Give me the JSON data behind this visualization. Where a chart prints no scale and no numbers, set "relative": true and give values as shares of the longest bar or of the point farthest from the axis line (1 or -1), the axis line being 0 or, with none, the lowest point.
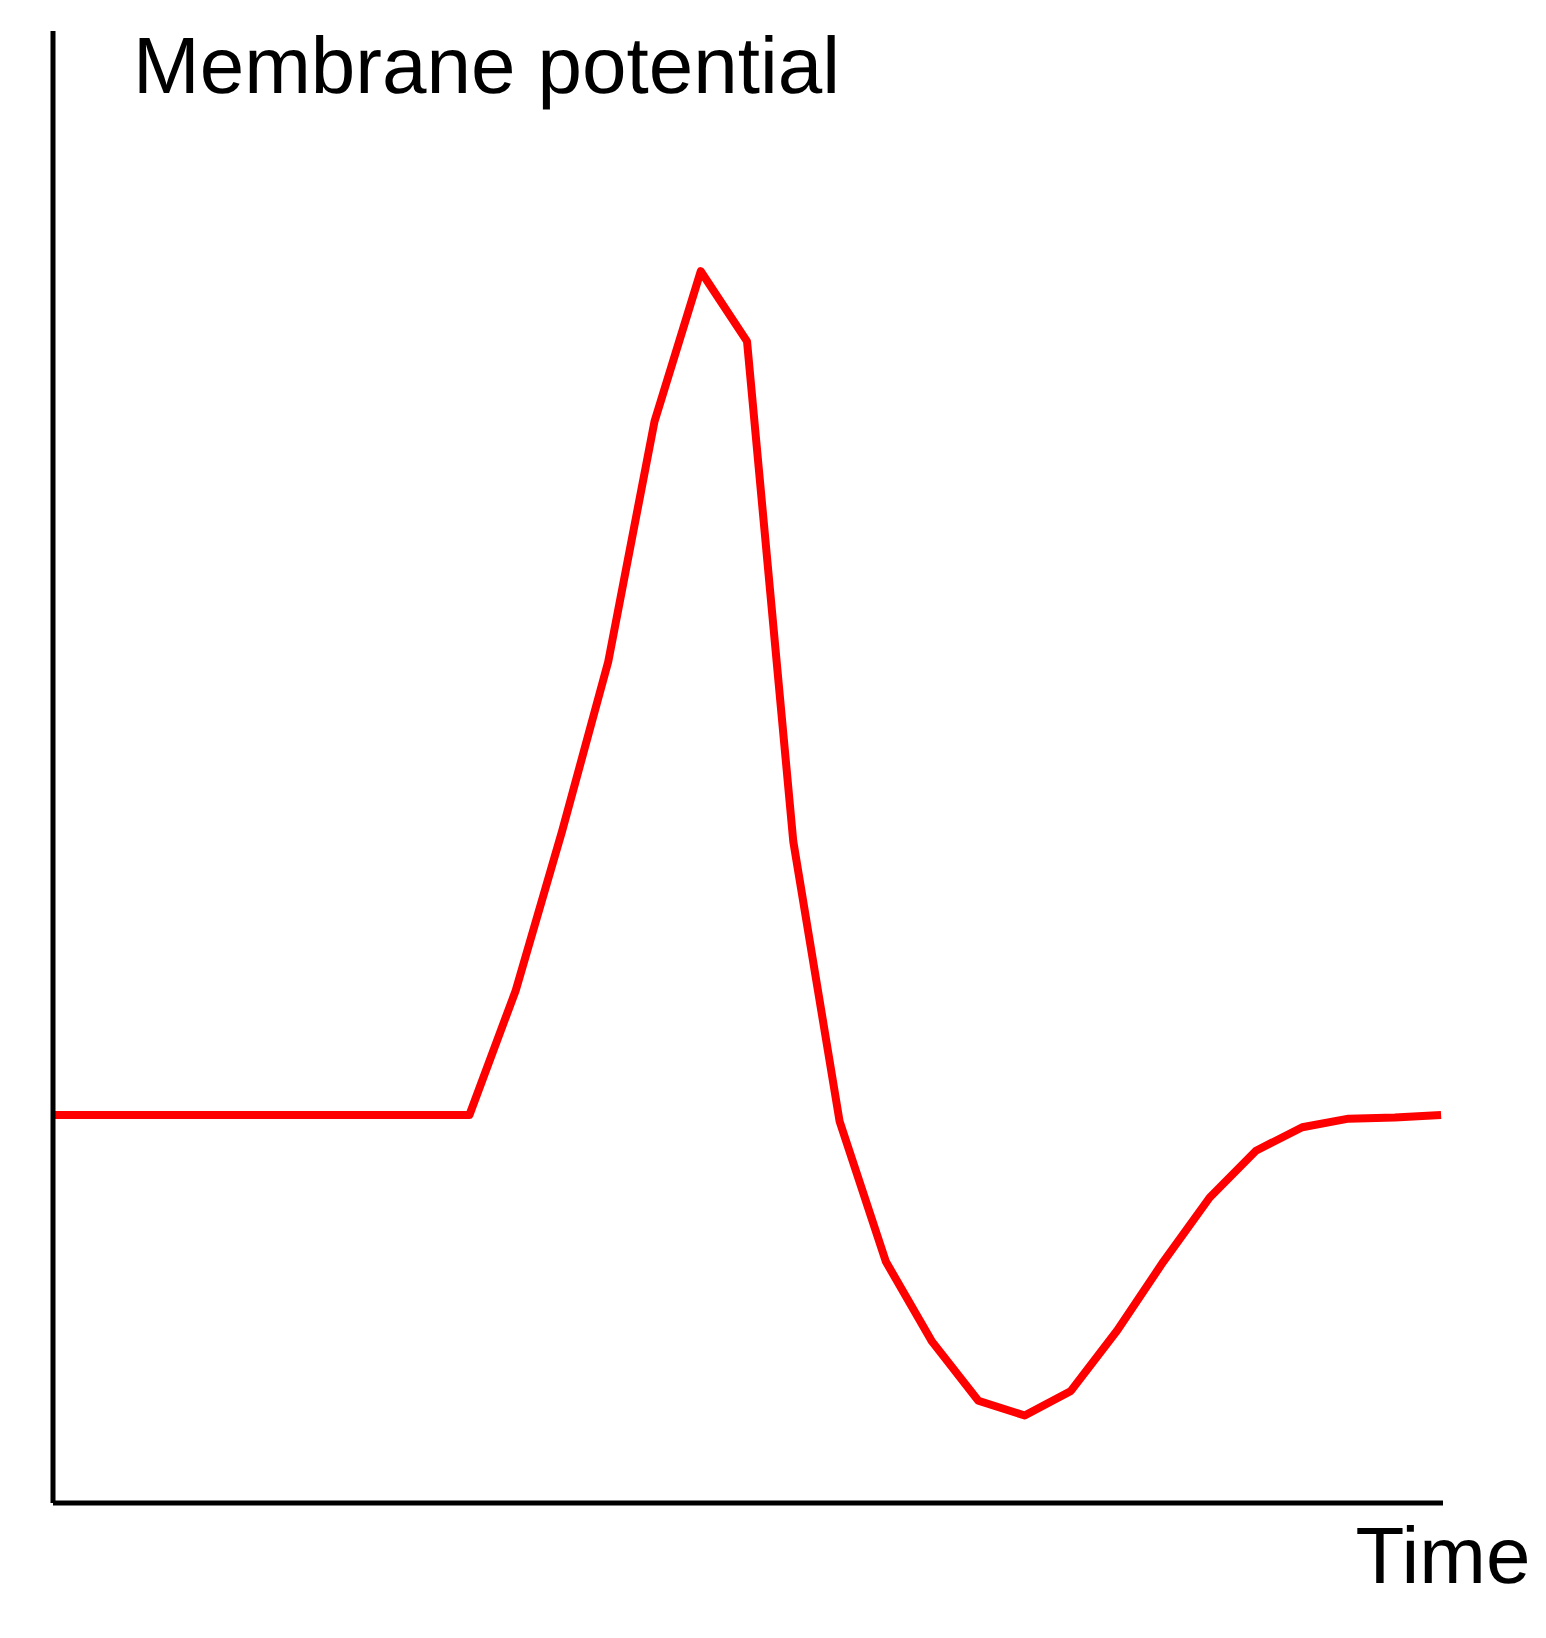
{
  "chart_data": {
    "type": "line",
    "relative": true,
    "grid": false,
    "xlabel": "Time",
    "ylabel": "Membrane potential",
    "categories": [
      null,
      null,
      null,
      null,
      null,
      null,
      null,
      null,
      null,
      null,
      null,
      null,
      null,
      null,
      null,
      null,
      null,
      null,
      null,
      null,
      null,
      null,
      null,
      null,
      null,
      null,
      null,
      null,
      null,
      null,
      null
    ],
    "series": [
      {
        "color": "#ff0000",
        "values": [
          0.315,
          0.315,
          0.315,
          0.315,
          0.315,
          0.315,
          0.315,
          0.315,
          0.315,
          0.315,
          0.416,
          0.545,
          0.683,
          0.878,
          1.0,
          0.943,
          0.537,
          0.31,
          0.196,
          0.131,
          0.083,
          0.071,
          0.091,
          0.14,
          0.196,
          0.248,
          0.286,
          0.305,
          0.312,
          0.313,
          0.315
        ]
      }
    ]
  }
}
